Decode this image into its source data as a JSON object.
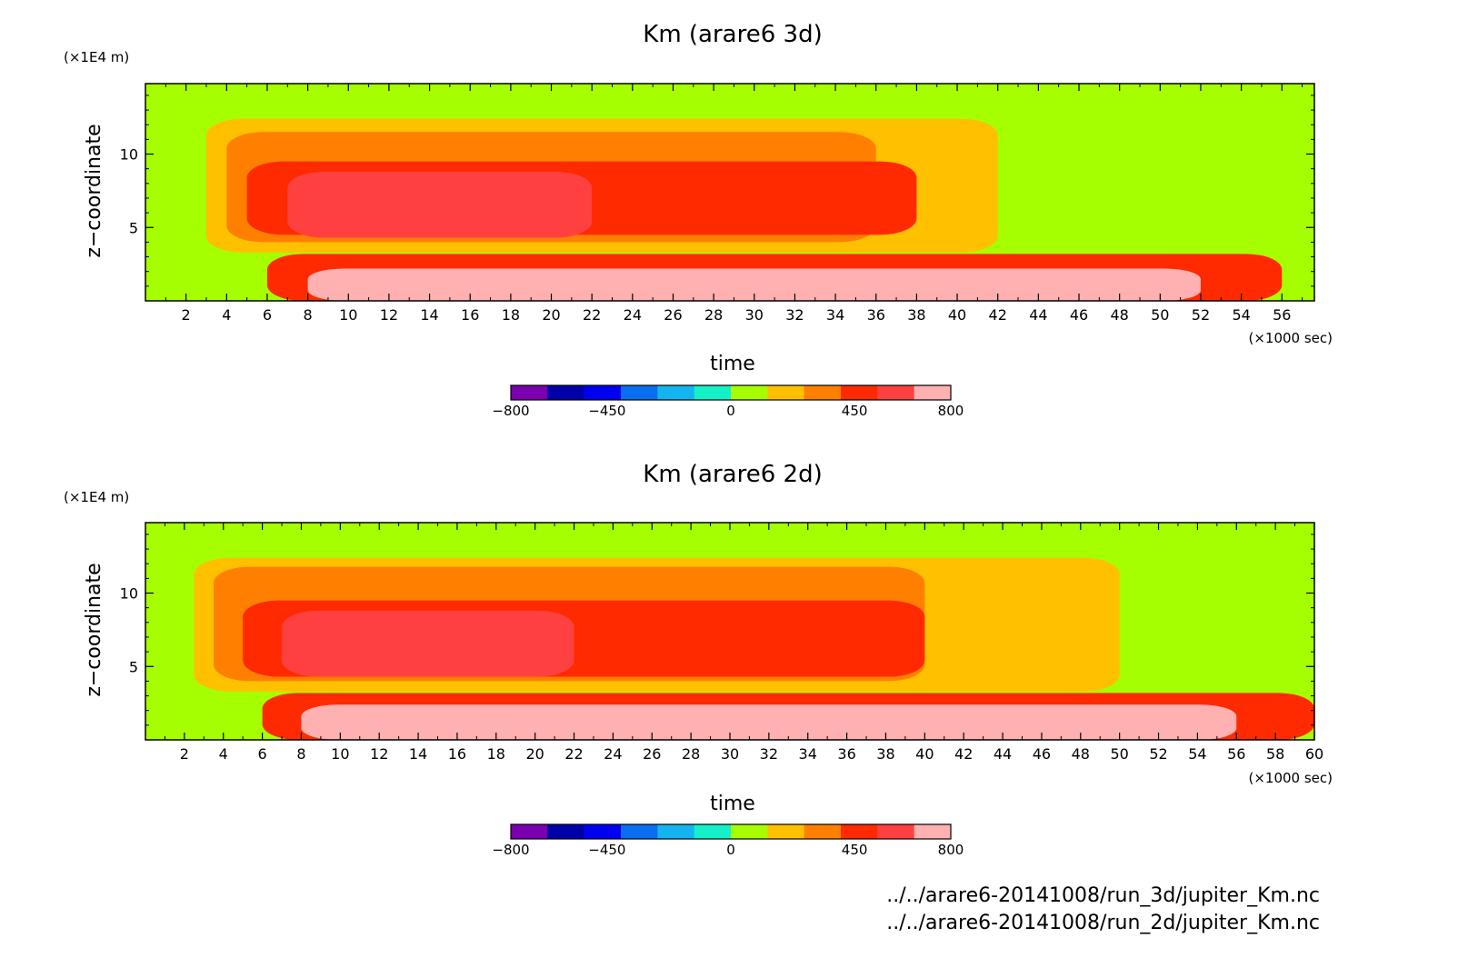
{
  "colors": [
    "#7a00b0",
    "#0000a8",
    "#0000f0",
    "#0a6ef0",
    "#14b4f0",
    "#14f0c8",
    "#a6ff00",
    "#ffc000",
    "#ff8000",
    "#ff2a00",
    "#ff4040",
    "#ffb0b0"
  ],
  "chart_data": [
    {
      "type": "heatmap",
      "title": "Km (arare6 3d)",
      "xlabel": "time",
      "x_unit_label": "(×1000 sec)",
      "ylabel": "z−coordinate",
      "y_unit_label": "(×1E4 m)",
      "xlim": [
        0,
        57.6
      ],
      "ylim": [
        0,
        14.8
      ],
      "x_ticks": [
        "2",
        "4",
        "6",
        "8",
        "10",
        "12",
        "14",
        "16",
        "18",
        "20",
        "22",
        "24",
        "26",
        "28",
        "30",
        "32",
        "34",
        "36",
        "38",
        "40",
        "42",
        "44",
        "46",
        "48",
        "50",
        "52",
        "54",
        "56"
      ],
      "y_ticks": [
        "5",
        "10"
      ],
      "colorbar": {
        "range": [
          -800,
          800
        ],
        "levels": 12,
        "labels": [
          "−800",
          "−450",
          "0",
          "450",
          "800"
        ]
      },
      "regions": [
        {
          "level": 7,
          "x": [
            3,
            42
          ],
          "y": [
            3.3,
            12.4
          ]
        },
        {
          "level": 8,
          "x": [
            4,
            36
          ],
          "y": [
            4,
            11.5
          ]
        },
        {
          "level": 9,
          "x": [
            5,
            38
          ],
          "y": [
            4.5,
            9.5
          ]
        },
        {
          "level": 10,
          "x": [
            7,
            22
          ],
          "y": [
            4.3,
            8.8
          ]
        },
        {
          "level": 9,
          "x": [
            6,
            56
          ],
          "y": [
            0,
            3.2
          ]
        },
        {
          "level": 11,
          "x": [
            8,
            52
          ],
          "y": [
            0,
            2.2
          ]
        }
      ]
    },
    {
      "type": "heatmap",
      "title": "Km (arare6 2d)",
      "xlabel": "time",
      "x_unit_label": "(×1000 sec)",
      "ylabel": "z−coordinate",
      "y_unit_label": "(×1E4 m)",
      "xlim": [
        0,
        60
      ],
      "ylim": [
        0,
        14.8
      ],
      "x_ticks": [
        "2",
        "4",
        "6",
        "8",
        "10",
        "12",
        "14",
        "16",
        "18",
        "20",
        "22",
        "24",
        "26",
        "28",
        "30",
        "32",
        "34",
        "36",
        "38",
        "40",
        "42",
        "44",
        "46",
        "48",
        "50",
        "52",
        "54",
        "56",
        "58",
        "60"
      ],
      "y_ticks": [
        "5",
        "10"
      ],
      "colorbar": {
        "range": [
          -800,
          800
        ],
        "levels": 12,
        "labels": [
          "−800",
          "−450",
          "0",
          "450",
          "800"
        ]
      },
      "regions": [
        {
          "level": 7,
          "x": [
            2.5,
            50
          ],
          "y": [
            3.3,
            12.4
          ]
        },
        {
          "level": 8,
          "x": [
            3.5,
            40
          ],
          "y": [
            4,
            11.8
          ]
        },
        {
          "level": 9,
          "x": [
            5,
            40
          ],
          "y": [
            4.3,
            9.5
          ]
        },
        {
          "level": 10,
          "x": [
            7,
            22
          ],
          "y": [
            4.3,
            8.8
          ]
        },
        {
          "level": 9,
          "x": [
            6,
            60
          ],
          "y": [
            0,
            3.2
          ]
        },
        {
          "level": 11,
          "x": [
            8,
            56
          ],
          "y": [
            0,
            2.4
          ]
        }
      ]
    }
  ],
  "footer": {
    "file1": "../../arare6-20141008/run_3d/jupiter_Km.nc",
    "file2": "../../arare6-20141008/run_2d/jupiter_Km.nc"
  }
}
